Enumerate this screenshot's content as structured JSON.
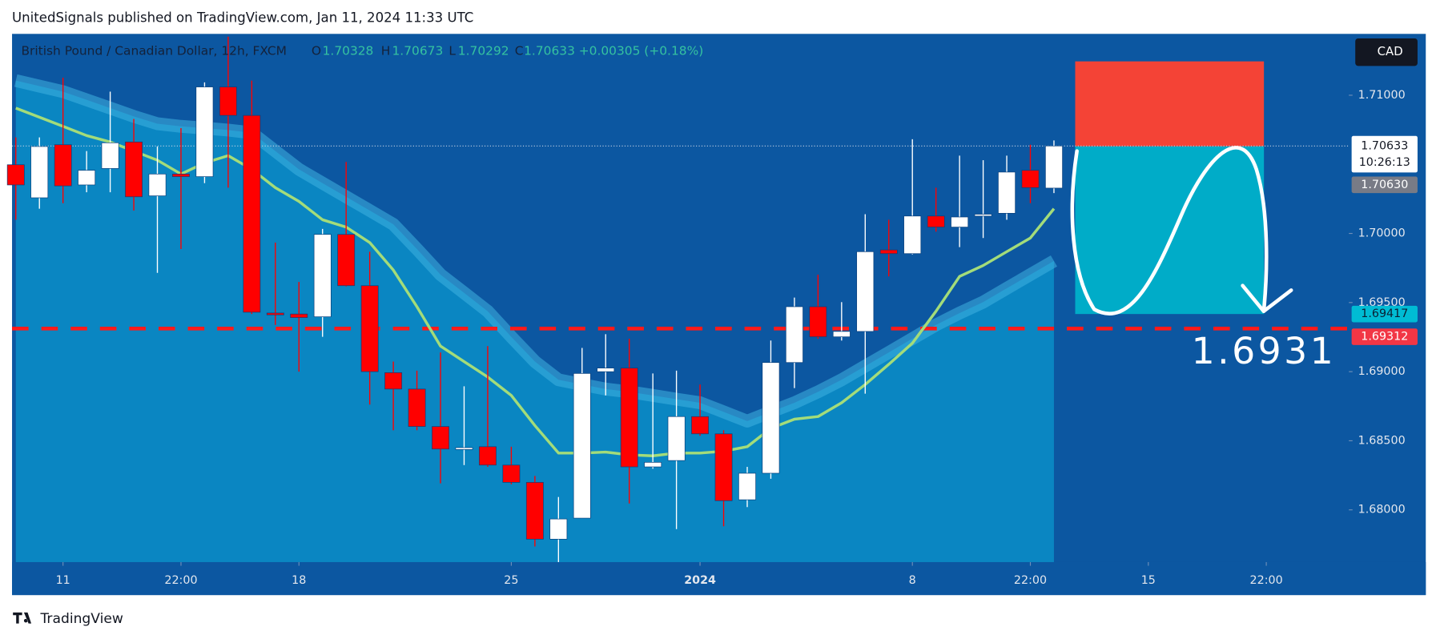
{
  "header": "UnitedSignals published on TradingView.com, Jan 11, 2024 11:33 UTC",
  "chart_data": {
    "type": "candlestick",
    "title": "British Pound / Canadian Dollar, 12h, FXCM",
    "ohlc_letters": [
      "O",
      "H",
      "L",
      "C"
    ],
    "change": "+0.00305 (+0.18%)",
    "currency": "CAD",
    "open": [
      1.70497,
      1.70258,
      1.70642,
      1.70351,
      1.7047,
      1.70662,
      1.70272,
      1.7043,
      1.70411,
      1.7106,
      1.70854,
      1.69424,
      1.69417,
      1.69397,
      1.69993,
      1.69622,
      1.68993,
      1.68874,
      1.68603,
      1.6844,
      1.68457,
      1.68324,
      1.68199,
      1.67788,
      1.6794,
      1.69,
      1.69026,
      1.68311,
      1.68357,
      1.68675,
      1.6855,
      1.68073,
      1.68265,
      1.69066,
      1.6947,
      1.69252,
      1.69291,
      1.69881,
      1.69854,
      1.70126,
      1.70046,
      1.70126,
      1.70146,
      1.70457,
      1.70328
    ],
    "high": [
      1.70695,
      1.70695,
      1.71126,
      1.70596,
      1.71026,
      1.70828,
      1.70629,
      1.70762,
      1.71093,
      1.71424,
      1.71106,
      1.69934,
      1.69649,
      1.70033,
      1.70517,
      1.69868,
      1.69073,
      1.69007,
      1.69139,
      1.68894,
      1.69185,
      1.68457,
      1.68245,
      1.68093,
      1.69172,
      1.69271,
      1.69238,
      1.68987,
      1.69007,
      1.68907,
      1.68576,
      1.68311,
      1.69225,
      1.69536,
      1.69702,
      1.69503,
      1.70139,
      1.70099,
      1.70682,
      1.70331,
      1.70563,
      1.7053,
      1.70563,
      1.70642,
      1.70673
    ],
    "low": [
      1.70099,
      1.70179,
      1.70219,
      1.70298,
      1.70298,
      1.70166,
      1.69715,
      1.69887,
      1.70364,
      1.70331,
      1.69417,
      1.69338,
      1.69,
      1.69252,
      1.69616,
      1.68762,
      1.68576,
      1.68576,
      1.68192,
      1.68324,
      1.68311,
      1.68185,
      1.67735,
      1.67622,
      1.6794,
      1.68828,
      1.68046,
      1.68298,
      1.67861,
      1.68536,
      1.67881,
      1.6802,
      1.68225,
      1.68881,
      1.69238,
      1.69225,
      1.68841,
      1.69689,
      1.69848,
      1.70013,
      1.69901,
      1.69967,
      1.70099,
      1.70219,
      1.70292
    ],
    "close": [
      1.70351,
      1.70629,
      1.70344,
      1.70457,
      1.70656,
      1.70265,
      1.7043,
      1.70411,
      1.7106,
      1.70854,
      1.6943,
      1.69411,
      1.69391,
      1.69993,
      1.69622,
      1.69,
      1.68874,
      1.68603,
      1.6844,
      1.6845,
      1.68324,
      1.68199,
      1.67788,
      1.67934,
      1.68987,
      1.69026,
      1.68311,
      1.68344,
      1.68675,
      1.6855,
      1.68066,
      1.68265,
      1.69066,
      1.6947,
      1.69252,
      1.69291,
      1.69868,
      1.69854,
      1.70126,
      1.70046,
      1.70119,
      1.70139,
      1.70444,
      1.70331,
      1.70633
    ],
    "up_color": "#ffffff",
    "down_color": "#ff0000",
    "lines": [
      {
        "color": "#3fb3e2",
        "fill": "#0a86c2",
        "values": [
          1.71106,
          1.71066,
          1.71026,
          1.70967,
          1.70907,
          1.70847,
          1.70794,
          1.70775,
          1.70762,
          1.70748,
          1.70728,
          1.70596,
          1.70464,
          1.70364,
          1.70265,
          1.70166,
          1.70066,
          1.69887,
          1.69702,
          1.6957,
          1.69437,
          1.69252,
          1.69073,
          1.68941,
          1.68907,
          1.68874,
          1.68854,
          1.68828,
          1.68801,
          1.68775,
          1.68709,
          1.68642,
          1.68709,
          1.68775,
          1.68854,
          1.68941,
          1.6904,
          1.69139,
          1.69239,
          1.69338,
          1.69424,
          1.69503,
          1.69603,
          1.69702,
          1.69801
        ]
      },
      {
        "color": "#a3dc7a",
        "values": [
          1.70907,
          1.70841,
          1.70775,
          1.70708,
          1.70662,
          1.70596,
          1.7053,
          1.7043,
          1.7051,
          1.70563,
          1.70464,
          1.70331,
          1.70232,
          1.70099,
          1.70046,
          1.69934,
          1.69735,
          1.6947,
          1.69185,
          1.69073,
          1.68961,
          1.68828,
          1.6861,
          1.68411,
          1.68411,
          1.68418,
          1.68398,
          1.68391,
          1.68411,
          1.68411,
          1.68424,
          1.68457,
          1.6859,
          1.68656,
          1.68675,
          1.68775,
          1.68907,
          1.69053,
          1.69206,
          1.69437,
          1.69689,
          1.69768,
          1.69868,
          1.69967,
          1.70179
        ]
      }
    ],
    "xlim": [
      -0.16,
      56.5
    ],
    "xticks": [
      {
        "value": 2,
        "label": "11"
      },
      {
        "value": 7,
        "label": "22:00"
      },
      {
        "value": 12,
        "label": "18"
      },
      {
        "value": 21,
        "label": "25"
      },
      {
        "value": 29,
        "label": "2024"
      },
      {
        "value": 38,
        "label": "8"
      },
      {
        "value": 43,
        "label": "22:00"
      },
      {
        "value": 48,
        "label": "15"
      },
      {
        "value": 53,
        "label": "22:00"
      }
    ],
    "ylim": [
      1.67622,
      1.71444
    ],
    "yticks": [
      {
        "value": 1.68,
        "label": "1.68000"
      },
      {
        "value": 1.685,
        "label": "1.68500"
      },
      {
        "value": 1.69,
        "label": "1.69000"
      },
      {
        "value": 1.695,
        "label": "1.69500"
      },
      {
        "value": 1.7,
        "label": "1.70000"
      },
      {
        "value": 1.71,
        "label": "1.71000"
      }
    ],
    "countdown": "10:26:13",
    "position": {
      "entry": {
        "value": 1.7063,
        "label": "1.70630"
      },
      "stop": 1.71245,
      "target": 1.69417,
      "stop_color": "#f44336",
      "target_color": "#00acc8",
      "x_range": [
        44.9,
        52.9
      ]
    },
    "level": {
      "value": 1.69312,
      "color": "#ff1a1a"
    },
    "annotation": "1.6931"
  },
  "footer": "TradingView"
}
